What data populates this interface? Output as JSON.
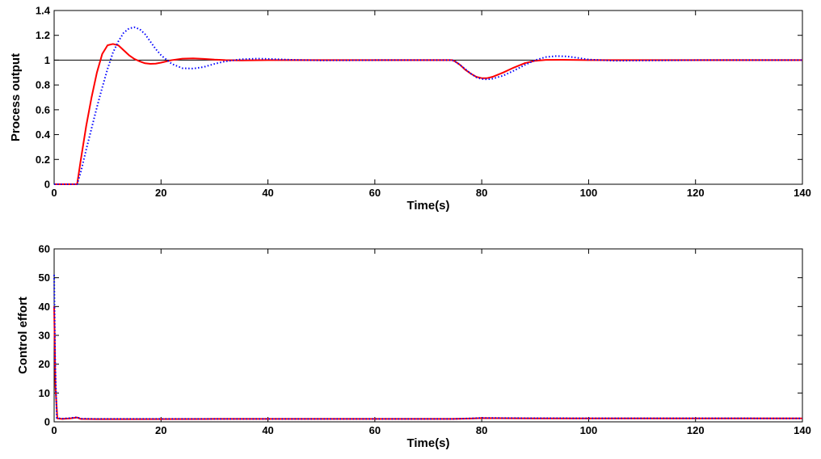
{
  "chart_data": [
    {
      "type": "line",
      "xlabel": "Time(s)",
      "ylabel": "Process output",
      "xlim": [
        0,
        140
      ],
      "ylim": [
        0,
        1.4
      ],
      "xticks": [
        "0",
        "20",
        "40",
        "60",
        "80",
        "100",
        "120",
        "140"
      ],
      "yticks": [
        "0",
        "0.2",
        "0.4",
        "0.6",
        "0.8",
        "1",
        "1.2",
        "1.4"
      ],
      "grid": false,
      "reference_line": {
        "y": 1,
        "color": "#000000"
      },
      "series": [
        {
          "color": "#ff0000",
          "style": "solid",
          "x": [
            0,
            4.3,
            5,
            6,
            7,
            8,
            9,
            10,
            11,
            12,
            13,
            14,
            15,
            16,
            17,
            18,
            19,
            20,
            22,
            24,
            26,
            28,
            30,
            32,
            35,
            40,
            50,
            60,
            70,
            74.5,
            75,
            76,
            77,
            78,
            79,
            80,
            81,
            82,
            84,
            86,
            88,
            90,
            92,
            95,
            100,
            110,
            120,
            130,
            140
          ],
          "y": [
            0,
            0,
            0.2,
            0.47,
            0.7,
            0.9,
            1.05,
            1.12,
            1.13,
            1.12,
            1.08,
            1.04,
            1.01,
            0.99,
            0.975,
            0.97,
            0.972,
            0.98,
            1.0,
            1.012,
            1.014,
            1.01,
            1.004,
            1.0,
            0.998,
            1.0,
            1.0,
            1.0,
            1.0,
            1.0,
            0.99,
            0.96,
            0.92,
            0.89,
            0.865,
            0.855,
            0.855,
            0.865,
            0.9,
            0.94,
            0.975,
            0.995,
            1.002,
            1.003,
            1.0,
            1.0,
            1.0,
            1.0,
            1.0
          ]
        },
        {
          "color": "#0000ff",
          "style": "dotted",
          "x": [
            0,
            4.3,
            5,
            6,
            7,
            8,
            9,
            10,
            11,
            12,
            13,
            14,
            15,
            16,
            17,
            18,
            19,
            20,
            22,
            24,
            26,
            28,
            30,
            32,
            35,
            38,
            40,
            45,
            50,
            60,
            70,
            74.5,
            75,
            76,
            77,
            78,
            79,
            80,
            81,
            82,
            84,
            86,
            88,
            90,
            92,
            94,
            96,
            98,
            100,
            105,
            110,
            120,
            130,
            140
          ],
          "y": [
            0,
            0,
            0.1,
            0.28,
            0.45,
            0.62,
            0.78,
            0.93,
            1.06,
            1.15,
            1.22,
            1.255,
            1.265,
            1.25,
            1.21,
            1.15,
            1.09,
            1.04,
            0.97,
            0.935,
            0.932,
            0.945,
            0.97,
            0.99,
            1.007,
            1.012,
            1.01,
            1.002,
            0.998,
            1.0,
            1.0,
            1.0,
            0.99,
            0.96,
            0.925,
            0.89,
            0.862,
            0.848,
            0.845,
            0.85,
            0.875,
            0.915,
            0.96,
            1.0,
            1.025,
            1.033,
            1.03,
            1.018,
            1.005,
            0.995,
            0.997,
            1.0,
            1.0,
            1.0
          ]
        }
      ]
    },
    {
      "type": "line",
      "xlabel": "Time(s)",
      "ylabel": "Control effort",
      "xlim": [
        0,
        140
      ],
      "ylim": [
        0,
        60
      ],
      "xticks": [
        "0",
        "20",
        "40",
        "60",
        "80",
        "100",
        "120",
        "140"
      ],
      "yticks": [
        "0",
        "10",
        "20",
        "30",
        "40",
        "50",
        "60"
      ],
      "grid": false,
      "series": [
        {
          "color": "#ff0000",
          "style": "solid",
          "x": [
            0,
            0.25,
            0.6,
            1.5,
            3,
            4.3,
            5,
            8,
            15,
            30,
            74.5,
            78,
            80,
            90,
            140
          ],
          "y": [
            40,
            12,
            1.2,
            1.0,
            1.2,
            1.5,
            1.0,
            0.95,
            0.95,
            1.0,
            1.0,
            1.15,
            1.3,
            1.2,
            1.2
          ]
        },
        {
          "color": "#0000ff",
          "style": "dotted",
          "x": [
            0,
            0.2,
            0.5,
            1.5,
            3,
            4.3,
            5,
            8,
            15,
            30,
            74.5,
            78,
            80,
            90,
            140
          ],
          "y": [
            51,
            20,
            1.3,
            1.1,
            1.3,
            1.6,
            1.1,
            1.0,
            1.0,
            1.0,
            1.0,
            1.2,
            1.35,
            1.25,
            1.2
          ]
        }
      ]
    }
  ]
}
